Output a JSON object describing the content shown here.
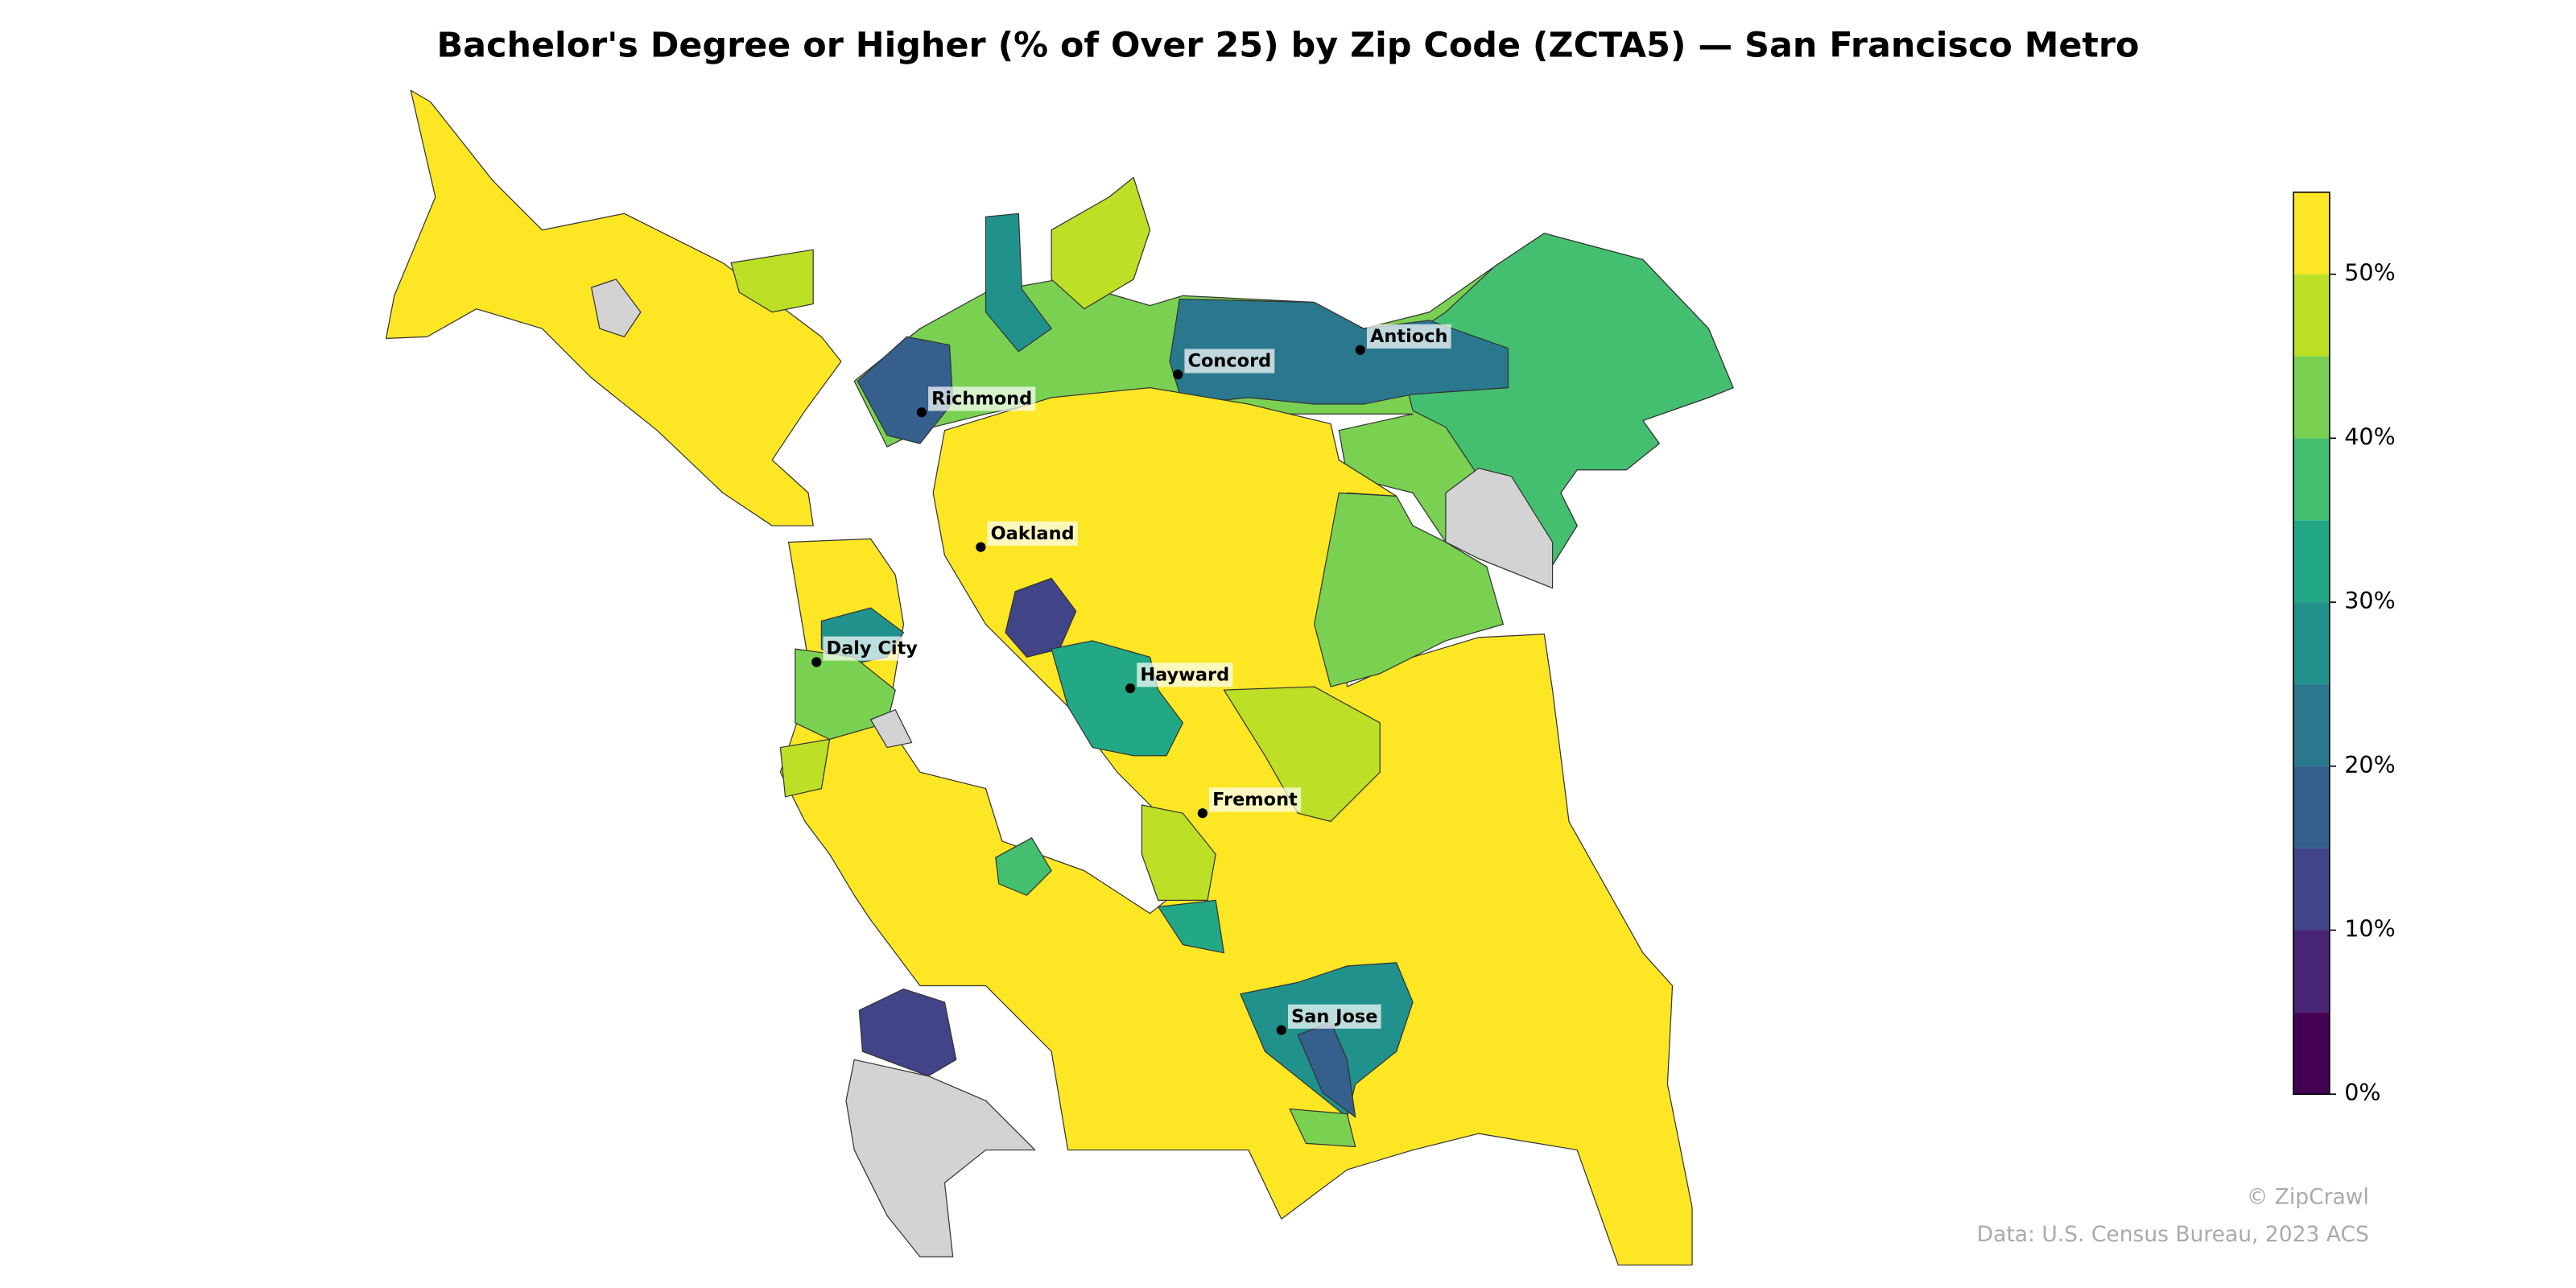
{
  "title": "Bachelor's Degree or Higher (% of Over 25) by Zip Code (ZCTA5) — San Francisco Metro",
  "cities": [
    "Richmond",
    "Concord",
    "Antioch",
    "Oakland",
    "Daly City",
    "Hayward",
    "Fremont",
    "San Jose"
  ],
  "colorbar": {
    "clim": [
      0,
      55
    ],
    "ticks": [
      {
        "value": 0,
        "label": "0%"
      },
      {
        "value": 10,
        "label": "10%"
      },
      {
        "value": 20,
        "label": "20%"
      },
      {
        "value": 30,
        "label": "30%"
      },
      {
        "value": 40,
        "label": "40%"
      },
      {
        "value": 50,
        "label": "50%"
      }
    ],
    "colors": [
      "#440154",
      "#482475",
      "#414487",
      "#355f8d",
      "#2a788e",
      "#21918c",
      "#22a884",
      "#44bf70",
      "#7ad151",
      "#bddf26",
      "#fde725"
    ]
  },
  "credits": [
    "© ZipCrawl",
    "Data: U.S. Census Bureau, 2023 ACS"
  ]
}
